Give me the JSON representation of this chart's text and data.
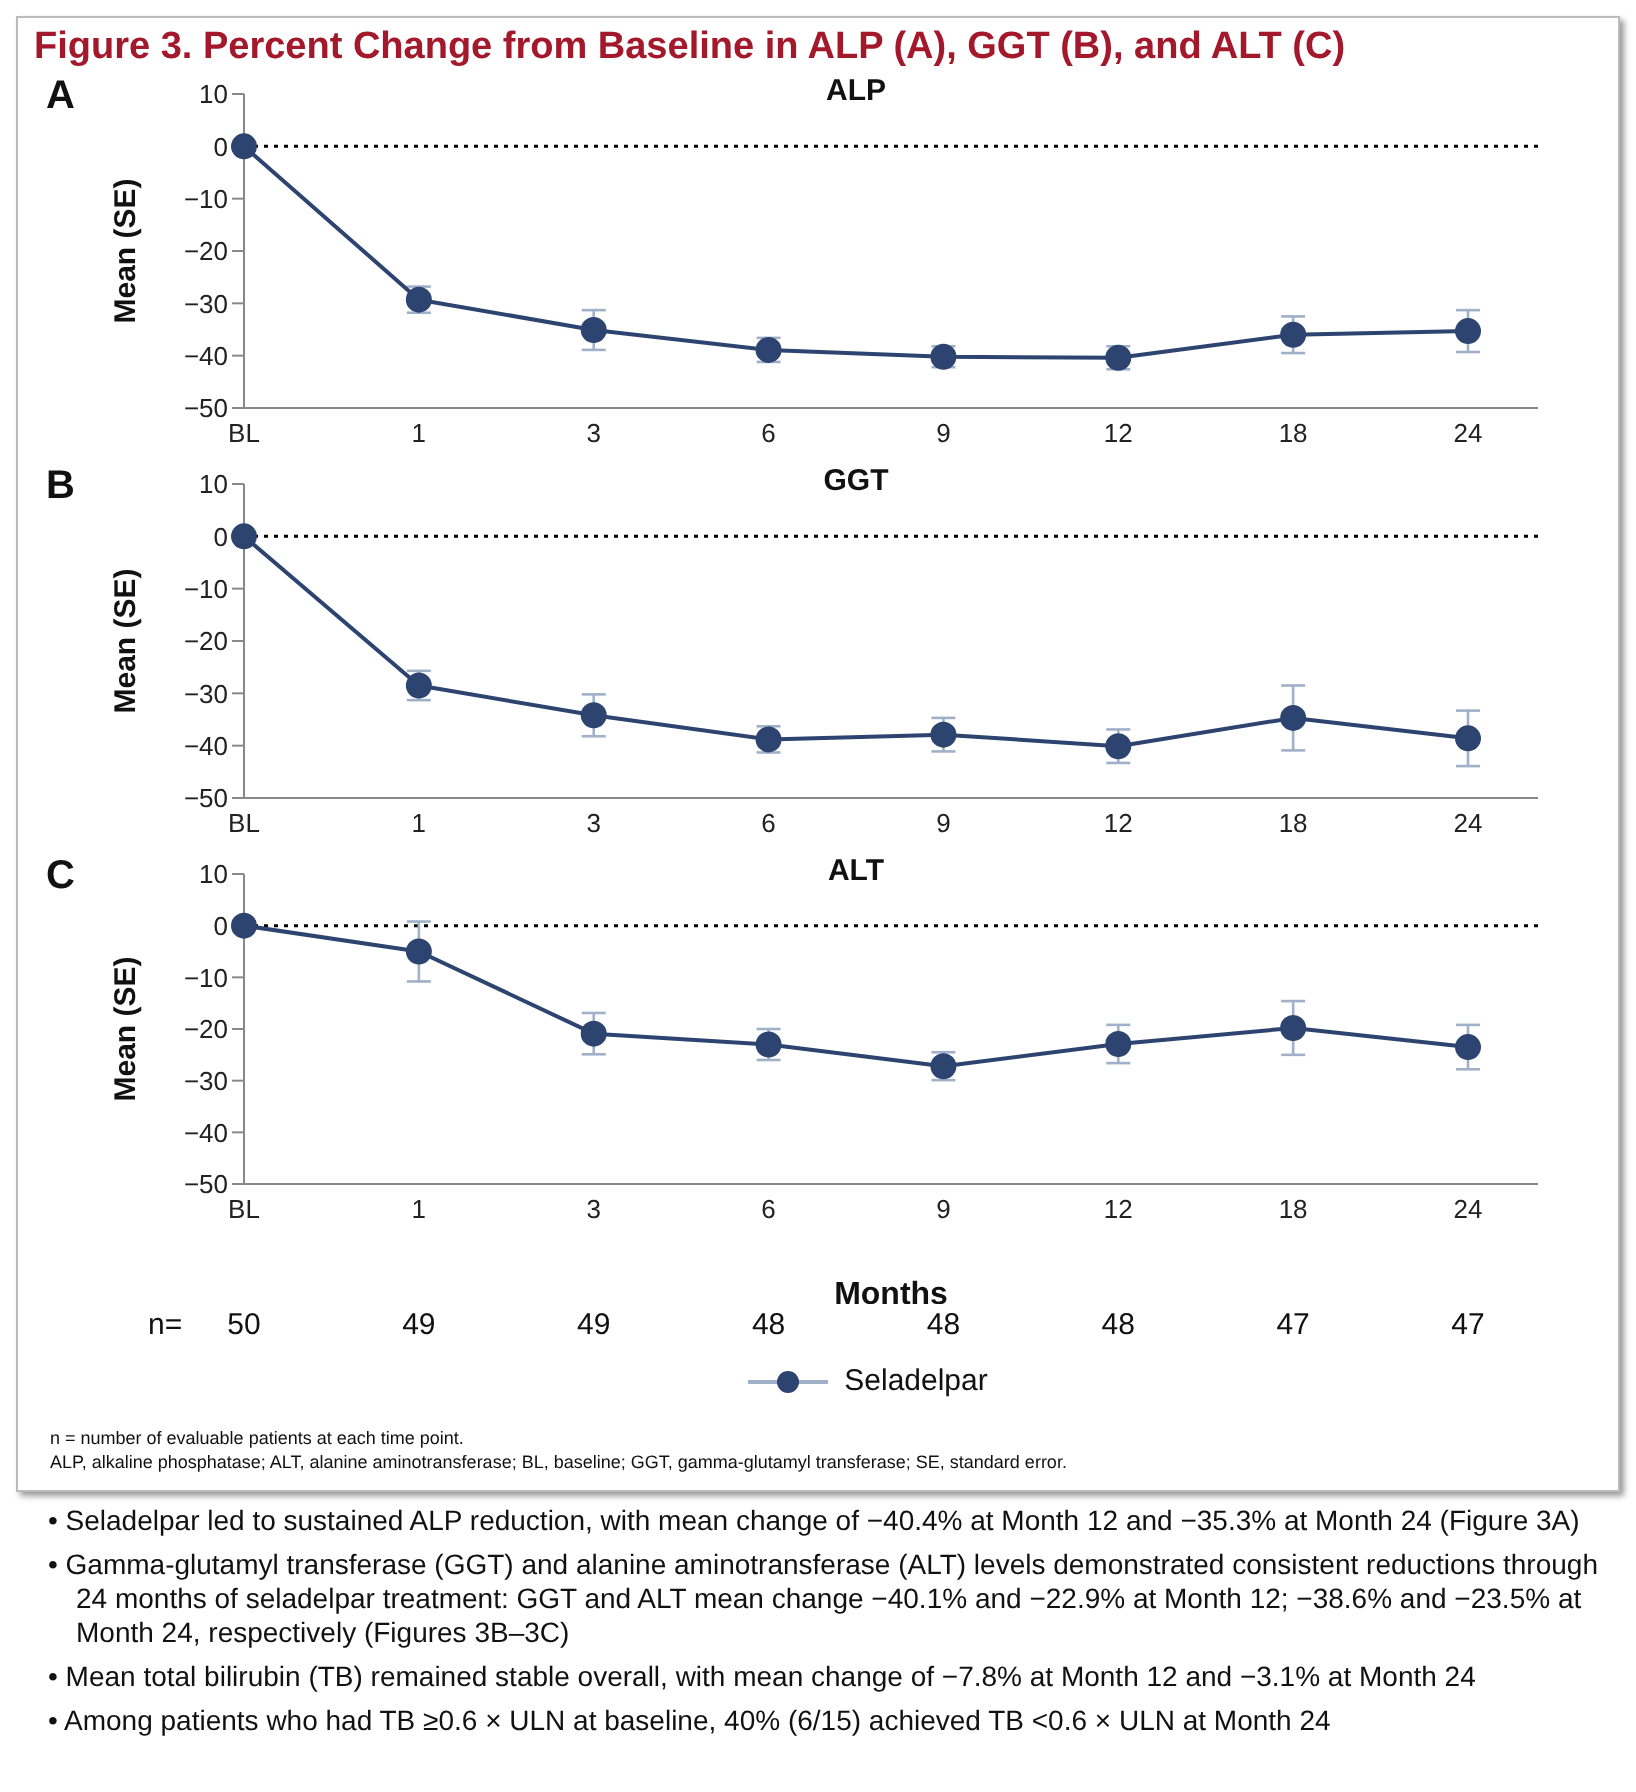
{
  "chart_data": [
    {
      "type": "line",
      "title": "ALP",
      "ylabel": "Mean (SE)",
      "categories": [
        "BL",
        "1",
        "3",
        "6",
        "9",
        "12",
        "18",
        "24"
      ],
      "ylim": [
        -50,
        10
      ],
      "yticks": [
        -50,
        -40,
        -30,
        -20,
        -10,
        0,
        10
      ],
      "grid": false,
      "legend": false,
      "marker": "circle",
      "line_style": "solid",
      "ref_lines": [
        {
          "axis": "y",
          "value": 0,
          "line_style": "dotted",
          "color": "#000000"
        }
      ],
      "annotations": [
        "Figure 3. Percent Change from Baseline in ALP (A), GGT (B), and ALT (C)",
        "A"
      ],
      "series": [
        {
          "color": "#2e4470",
          "values": [
            0,
            -29.3,
            -35.1,
            -38.9,
            -40.2,
            -40.4,
            -36.0,
            -35.3
          ],
          "errors": [
            null,
            2.5,
            3.8,
            2.3,
            2.0,
            2.2,
            3.5,
            4.0
          ]
        }
      ]
    },
    {
      "type": "line",
      "title": "GGT",
      "ylabel": "Mean (SE)",
      "categories": [
        "BL",
        "1",
        "3",
        "6",
        "9",
        "12",
        "18",
        "24"
      ],
      "ylim": [
        -50,
        10
      ],
      "yticks": [
        -50,
        -40,
        -30,
        -20,
        -10,
        0,
        10
      ],
      "grid": false,
      "legend": false,
      "marker": "circle",
      "line_style": "solid",
      "ref_lines": [
        {
          "axis": "y",
          "value": 0,
          "line_style": "dotted",
          "color": "#000000"
        }
      ],
      "annotations": [
        "B"
      ],
      "series": [
        {
          "color": "#2e4470",
          "values": [
            0,
            -28.5,
            -34.2,
            -38.8,
            -37.9,
            -40.1,
            -34.7,
            -38.6
          ],
          "errors": [
            null,
            2.8,
            4.0,
            2.5,
            3.2,
            3.2,
            6.2,
            5.3
          ]
        }
      ]
    },
    {
      "type": "line",
      "title": "ALT",
      "xlabel": "Months",
      "ylabel": "Mean (SE)",
      "categories": [
        "BL",
        "1",
        "3",
        "6",
        "9",
        "12",
        "18",
        "24"
      ],
      "ylim": [
        -50,
        10
      ],
      "yticks": [
        -50,
        -40,
        -30,
        -20,
        -10,
        0,
        10
      ],
      "grid": false,
      "legend": "bottom",
      "marker": "circle",
      "line_style": "solid",
      "ref_lines": [
        {
          "axis": "y",
          "value": 0,
          "line_style": "dotted",
          "color": "#000000"
        }
      ],
      "annotations": [
        "C",
        "n=",
        "50",
        "49",
        "49",
        "48",
        "48",
        "48",
        "47",
        "47",
        "n = number of evaluable patients at each time point.",
        "ALP, alkaline phosphatase; ALT, alanine aminotransferase; BL, baseline; GGT, gamma-glutamyl transferase; SE, standard error."
      ],
      "series": [
        {
          "name": "Seladelpar",
          "color": "#2e4470",
          "values": [
            0,
            -5.0,
            -20.9,
            -23.0,
            -27.2,
            -22.9,
            -19.8,
            -23.5
          ],
          "errors": [
            null,
            5.8,
            4.0,
            3.0,
            2.7,
            3.7,
            5.2,
            4.3
          ]
        }
      ]
    },
    {
      "type": "other",
      "annotations": [
        "• Seladelpar led to sustained ALP reduction, with mean change of −40.4% at Month 12 and −35.3% at Month 24 (Figure 3A)",
        "• Gamma-glutamyl transferase (GGT) and alanine aminotransferase (ALT) levels demonstrated consistent reductions through 24 months of seladelpar treatment: GGT and ALT mean change −40.1% and −22.9% at Month 12; −38.6% and −23.5% at Month 24, respectively (Figures 3B–3C)",
        "• Mean total bilirubin (TB) remained stable overall, with mean change of −7.8% at Month 12 and −3.1% at Month 24",
        "• Among patients who had TB ≥0.6 × ULN at baseline, 40% (6/15) achieved TB <0.6 × ULN at Month 24"
      ]
    }
  ]
}
